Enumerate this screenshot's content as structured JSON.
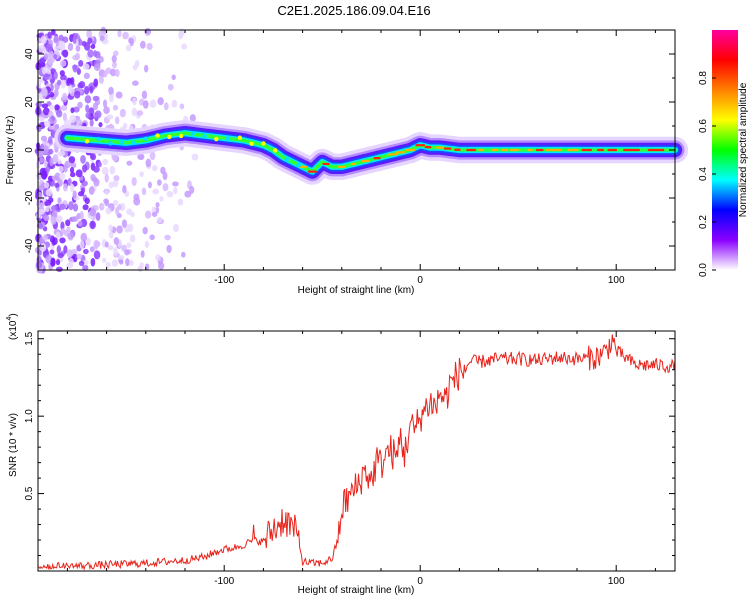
{
  "title": "C2E1.2025.186.09.04.E16",
  "chart_data": [
    {
      "type": "heatmap",
      "name": "spectrogram",
      "xlabel": "Height of straight line (km)",
      "ylabel": "Frequency (Hz)",
      "xlim": [
        -195,
        130
      ],
      "ylim": [
        -50,
        50
      ],
      "x_ticks": [
        -100,
        0,
        100
      ],
      "x_tick_labels": [
        "-100",
        "0",
        "100"
      ],
      "y_ticks": [
        -40,
        -20,
        0,
        20,
        40
      ],
      "y_tick_labels": [
        "-40",
        "-20",
        "0",
        "20",
        "40"
      ],
      "colorbar": {
        "label": "Normalized spectral amplitude",
        "range": [
          0,
          1
        ],
        "ticks": [
          0.0,
          0.2,
          0.4,
          0.6,
          0.8
        ],
        "tick_labels": [
          "0.0",
          "0.2",
          "0.4",
          "0.6",
          "0.8"
        ],
        "colormap": [
          "#ffffff",
          "#8a00ff",
          "#0000ff",
          "#00ffff",
          "#00ff00",
          "#ffff00",
          "#ff8000",
          "#ff0000",
          "#ff00a0"
        ]
      },
      "ridge": {
        "x": [
          -180,
          -165,
          -150,
          -140,
          -130,
          -120,
          -110,
          -100,
          -90,
          -80,
          -75,
          -70,
          -65,
          -60,
          -55,
          -50,
          -45,
          -40,
          -35,
          -30,
          -25,
          -20,
          -15,
          -10,
          -5,
          0,
          5,
          10,
          20,
          40,
          60,
          80,
          100,
          120,
          130
        ],
        "y": [
          5,
          4,
          3,
          4,
          6,
          7,
          6,
          5,
          4,
          2,
          0,
          -3,
          -5,
          -7,
          -9,
          -5,
          -7,
          -7,
          -6,
          -5,
          -4,
          -3,
          -2,
          -1,
          0,
          2,
          1,
          1,
          0,
          0,
          0,
          0,
          0,
          0,
          0
        ]
      },
      "noise_region_x": [
        -195,
        -115
      ],
      "noise_density": 0.8
    },
    {
      "type": "line",
      "name": "snr",
      "xlabel": "Height of straight line (km)",
      "ylabel": "SNR (10 * v/v)",
      "y_multiplier_label": "(x10",
      "y_multiplier_exp": "4",
      "xlim": [
        -195,
        130
      ],
      "ylim": [
        0,
        1.55
      ],
      "x_ticks": [
        -100,
        0,
        100
      ],
      "x_tick_labels": [
        "-100",
        "0",
        "100"
      ],
      "y_ticks": [
        0.5,
        1.0,
        1.5
      ],
      "y_tick_labels": [
        "0.5",
        "1.0",
        "1.5"
      ],
      "line_color": "#e8241c",
      "series": [
        {
          "x": [
            -195,
            -180,
            -160,
            -140,
            -130,
            -120,
            -110,
            -105,
            -100,
            -95,
            -90,
            -85,
            -80,
            -75,
            -72,
            -70,
            -65,
            -62,
            -60,
            -55,
            -50,
            -45,
            -42,
            -40,
            -38,
            -35,
            -32,
            -30,
            -28,
            -25,
            -22,
            -20,
            -18,
            -15,
            -12,
            -10,
            -8,
            -5,
            -3,
            0,
            3,
            5,
            8,
            10,
            13,
            15,
            18,
            20,
            23,
            25,
            30,
            35,
            40,
            50,
            60,
            70,
            80,
            90,
            95,
            98,
            100,
            110,
            120,
            130
          ],
          "y": [
            0.03,
            0.03,
            0.04,
            0.05,
            0.06,
            0.07,
            0.09,
            0.12,
            0.14,
            0.15,
            0.17,
            0.2,
            0.19,
            0.27,
            0.3,
            0.34,
            0.28,
            0.2,
            0.06,
            0.05,
            0.05,
            0.08,
            0.2,
            0.4,
            0.45,
            0.5,
            0.55,
            0.6,
            0.65,
            0.58,
            0.72,
            0.68,
            0.75,
            0.78,
            0.72,
            0.88,
            0.75,
            0.95,
            0.9,
            1.0,
            1.05,
            1.1,
            1.05,
            1.15,
            1.1,
            1.2,
            1.25,
            1.28,
            1.3,
            1.35,
            1.35,
            1.36,
            1.37,
            1.37,
            1.36,
            1.38,
            1.37,
            1.38,
            1.42,
            1.5,
            1.42,
            1.33,
            1.33,
            1.32
          ]
        }
      ],
      "noise_amplitude": 0.05
    }
  ]
}
